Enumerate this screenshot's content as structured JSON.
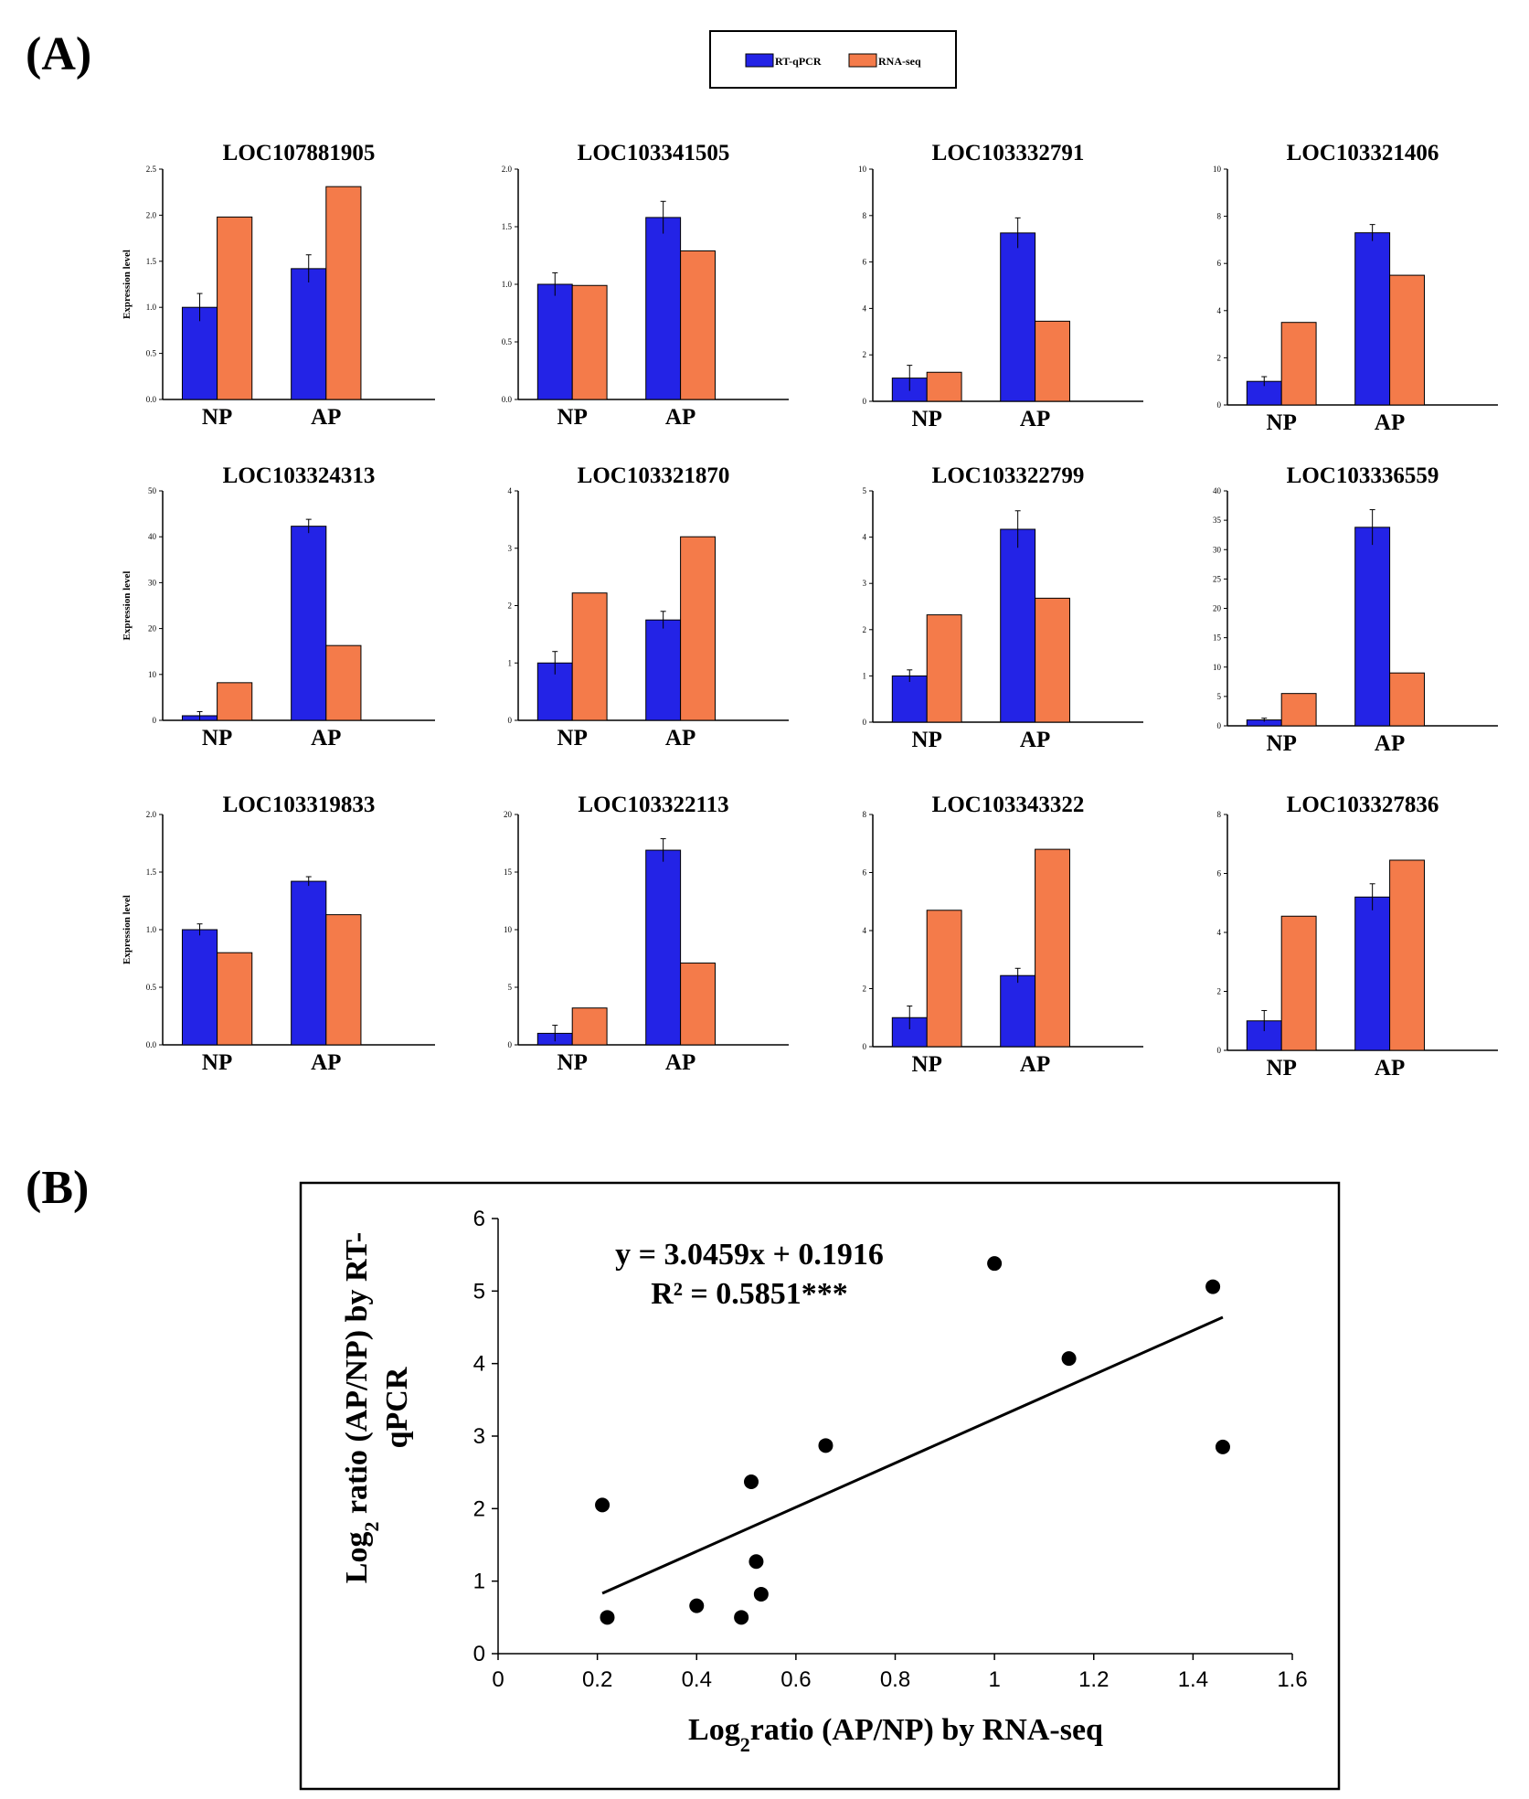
{
  "panel_a_label": "(A)",
  "panel_b_label": "(B)",
  "legend": {
    "items": [
      {
        "label": "RT-qPCR",
        "color": "#2323e6"
      },
      {
        "label": "RNA-seq",
        "color": "#f47b4a"
      }
    ]
  },
  "colors": {
    "rtqpcr": "#2323e6",
    "rnaseq": "#f47b4a",
    "axis": "#000000"
  },
  "chart_data": [
    {
      "type": "bar",
      "title": "LOC107881905",
      "categories": [
        "NP",
        "AP"
      ],
      "ylabel": "Expression level",
      "ylim": [
        0,
        2.5
      ],
      "yticks": [
        "0.0",
        "0.5",
        "1.0",
        "1.5",
        "2.0",
        "2.5"
      ],
      "series": [
        {
          "name": "RT-qPCR",
          "values": [
            1.0,
            1.42
          ],
          "errors": [
            0.15,
            0.15
          ]
        },
        {
          "name": "RNA-seq",
          "values": [
            1.98,
            2.31
          ]
        }
      ]
    },
    {
      "type": "bar",
      "title": "LOC103341505",
      "categories": [
        "NP",
        "AP"
      ],
      "ylabel": "",
      "ylim": [
        0,
        2.0
      ],
      "yticks": [
        "0.0",
        "0.5",
        "1.0",
        "1.5",
        "2.0"
      ],
      "series": [
        {
          "name": "RT-qPCR",
          "values": [
            1.0,
            1.58
          ],
          "errors": [
            0.1,
            0.14
          ]
        },
        {
          "name": "RNA-seq",
          "values": [
            0.99,
            1.29
          ]
        }
      ]
    },
    {
      "type": "bar",
      "title": "LOC103332791",
      "categories": [
        "NP",
        "AP"
      ],
      "ylabel": "",
      "ylim": [
        0,
        10
      ],
      "yticks": [
        "0",
        "2",
        "4",
        "6",
        "8",
        "10"
      ],
      "series": [
        {
          "name": "RT-qPCR",
          "values": [
            1.0,
            7.25
          ],
          "errors": [
            0.55,
            0.65
          ]
        },
        {
          "name": "RNA-seq",
          "values": [
            1.25,
            3.45
          ]
        }
      ]
    },
    {
      "type": "bar",
      "title": "LOC103321406",
      "categories": [
        "NP",
        "AP"
      ],
      "ylabel": "",
      "ylim": [
        0,
        10
      ],
      "yticks": [
        "0",
        "2",
        "4",
        "6",
        "8",
        "10"
      ],
      "series": [
        {
          "name": "RT-qPCR",
          "values": [
            1.0,
            7.3
          ],
          "errors": [
            0.2,
            0.35
          ]
        },
        {
          "name": "RNA-seq",
          "values": [
            3.5,
            5.5
          ]
        }
      ]
    },
    {
      "type": "bar",
      "title": "LOC103324313",
      "categories": [
        "NP",
        "AP"
      ],
      "ylabel": "Expression level",
      "ylim": [
        0,
        50
      ],
      "yticks": [
        "0",
        "10",
        "20",
        "30",
        "40",
        "50"
      ],
      "series": [
        {
          "name": "RT-qPCR",
          "values": [
            1.0,
            42.3
          ],
          "errors": [
            0.9,
            1.5
          ]
        },
        {
          "name": "RNA-seq",
          "values": [
            8.2,
            16.3
          ]
        }
      ]
    },
    {
      "type": "bar",
      "title": "LOC103321870",
      "categories": [
        "NP",
        "AP"
      ],
      "ylabel": "",
      "ylim": [
        0,
        4
      ],
      "yticks": [
        "0",
        "1",
        "2",
        "3",
        "4"
      ],
      "series": [
        {
          "name": "RT-qPCR",
          "values": [
            1.0,
            1.75
          ],
          "errors": [
            0.2,
            0.15
          ]
        },
        {
          "name": "RNA-seq",
          "values": [
            2.22,
            3.2
          ]
        }
      ]
    },
    {
      "type": "bar",
      "title": "LOC103322799",
      "categories": [
        "NP",
        "AP"
      ],
      "ylabel": "",
      "ylim": [
        0,
        5
      ],
      "yticks": [
        "0",
        "1",
        "2",
        "3",
        "4",
        "5"
      ],
      "series": [
        {
          "name": "RT-qPCR",
          "values": [
            1.0,
            4.17
          ],
          "errors": [
            0.13,
            0.4
          ]
        },
        {
          "name": "RNA-seq",
          "values": [
            2.32,
            2.68
          ]
        }
      ]
    },
    {
      "type": "bar",
      "title": "LOC103336559",
      "categories": [
        "NP",
        "AP"
      ],
      "ylabel": "",
      "ylim": [
        0,
        40
      ],
      "yticks": [
        "0",
        "5",
        "10",
        "15",
        "20",
        "25",
        "30",
        "35",
        "40"
      ],
      "series": [
        {
          "name": "RT-qPCR",
          "values": [
            1.0,
            33.8
          ],
          "errors": [
            0.3,
            3.0
          ]
        },
        {
          "name": "RNA-seq",
          "values": [
            5.5,
            9.0
          ]
        }
      ]
    },
    {
      "type": "bar",
      "title": "LOC103319833",
      "categories": [
        "NP",
        "AP"
      ],
      "ylabel": "Expression level",
      "ylim": [
        0,
        2.0
      ],
      "yticks": [
        "0.0",
        "0.5",
        "1.0",
        "1.5",
        "2.0"
      ],
      "series": [
        {
          "name": "RT-qPCR",
          "values": [
            1.0,
            1.42
          ],
          "errors": [
            0.05,
            0.04
          ]
        },
        {
          "name": "RNA-seq",
          "values": [
            0.8,
            1.13
          ]
        }
      ]
    },
    {
      "type": "bar",
      "title": "LOC103322113",
      "categories": [
        "NP",
        "AP"
      ],
      "ylabel": "",
      "ylim": [
        0,
        20
      ],
      "yticks": [
        "0",
        "5",
        "10",
        "15",
        "20"
      ],
      "series": [
        {
          "name": "RT-qPCR",
          "values": [
            1.0,
            16.9
          ],
          "errors": [
            0.7,
            1.0
          ]
        },
        {
          "name": "RNA-seq",
          "values": [
            3.2,
            7.1
          ]
        }
      ]
    },
    {
      "type": "bar",
      "title": "LOC103343322",
      "categories": [
        "NP",
        "AP"
      ],
      "ylabel": "",
      "ylim": [
        0,
        8
      ],
      "yticks": [
        "0",
        "2",
        "4",
        "6",
        "8"
      ],
      "series": [
        {
          "name": "RT-qPCR",
          "values": [
            1.0,
            2.45
          ],
          "errors": [
            0.4,
            0.25
          ]
        },
        {
          "name": "RNA-seq",
          "values": [
            4.7,
            6.8
          ]
        }
      ]
    },
    {
      "type": "bar",
      "title": "LOC103327836",
      "categories": [
        "NP",
        "AP"
      ],
      "ylabel": "",
      "ylim": [
        0,
        8
      ],
      "yticks": [
        "0",
        "2",
        "4",
        "6",
        "8"
      ],
      "series": [
        {
          "name": "RT-qPCR",
          "values": [
            1.0,
            5.2
          ],
          "errors": [
            0.35,
            0.45
          ]
        },
        {
          "name": "RNA-seq",
          "values": [
            4.55,
            6.45
          ]
        }
      ]
    },
    {
      "type": "scatter",
      "title": "",
      "xlabel_main": "Log",
      "xlabel_sub": "2",
      "xlabel_rest": "ratio (AP/NP) by RNA-seq",
      "ylabel_line1_main": "Log",
      "ylabel_line1_sub": "2",
      "ylabel_line1_rest": " ratio (AP/NP) by RT-",
      "ylabel_line2": "qPCR",
      "xlim": [
        0,
        1.6
      ],
      "ylim": [
        0,
        6
      ],
      "xticks": [
        "0",
        "0.2",
        "0.4",
        "0.6",
        "0.8",
        "1",
        "1.2",
        "1.4",
        "1.6"
      ],
      "yticks": [
        "0",
        "1",
        "2",
        "3",
        "4",
        "5",
        "6"
      ],
      "equation": "y = 3.0459x + 0.1916",
      "r2": "R² = 0.5851***",
      "fit": {
        "slope": 3.0459,
        "intercept": 0.1916,
        "x_range": [
          0.21,
          1.46
        ]
      },
      "points": [
        {
          "x": 0.21,
          "y": 2.05
        },
        {
          "x": 0.22,
          "y": 0.5
        },
        {
          "x": 0.4,
          "y": 0.66
        },
        {
          "x": 0.49,
          "y": 0.5
        },
        {
          "x": 0.51,
          "y": 2.37
        },
        {
          "x": 0.52,
          "y": 1.27
        },
        {
          "x": 0.53,
          "y": 0.82
        },
        {
          "x": 0.66,
          "y": 2.87
        },
        {
          "x": 1.0,
          "y": 5.38
        },
        {
          "x": 1.15,
          "y": 4.07
        },
        {
          "x": 1.44,
          "y": 5.06
        },
        {
          "x": 1.46,
          "y": 2.85
        }
      ]
    }
  ]
}
